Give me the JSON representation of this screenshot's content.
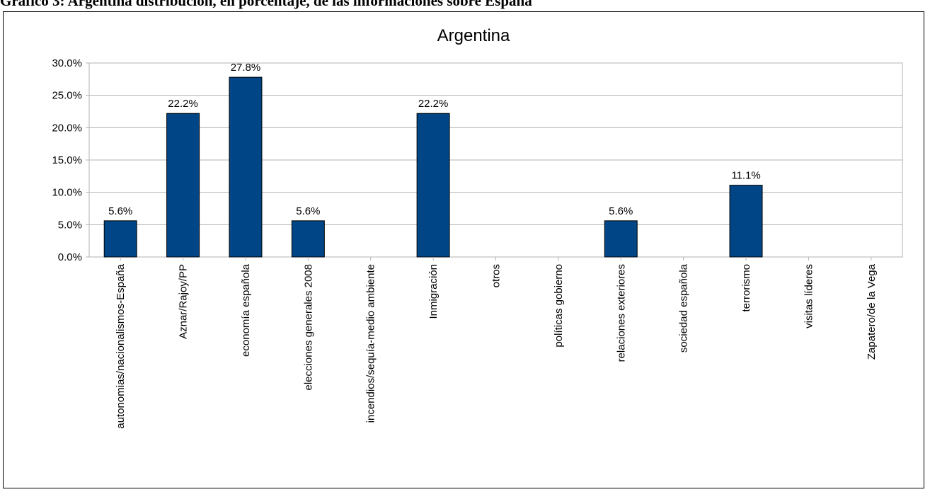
{
  "heading": "Gráfico 3: Argentina distribución, en porcentaje, de las informaciones sobre España",
  "colors": {
    "bar": "#004586",
    "grid": "#b3b3b3"
  },
  "chart_data": {
    "type": "bar",
    "title": "Argentina",
    "xlabel": "",
    "ylabel": "",
    "ylim": [
      0,
      30
    ],
    "yticks": [
      "0.0%",
      "5.0%",
      "10.0%",
      "15.0%",
      "20.0%",
      "25.0%",
      "30.0%"
    ],
    "ytick_values": [
      0,
      5,
      10,
      15,
      20,
      25,
      30
    ],
    "grid": true,
    "legend": "none",
    "categories": [
      "autonomias/nacionalismos-España",
      "Aznar/Rajoy/PP",
      "economía española",
      "elecciones generales 2008",
      "incendios/sequía-medio ambiente",
      "Inmigración",
      "otros",
      "políticas gobierno",
      "relaciones exteriores",
      "sociedad española",
      "terrorismo",
      "visitas líderes",
      "Zapatero/de la Vega"
    ],
    "values": [
      5.6,
      22.2,
      27.8,
      5.6,
      0,
      22.2,
      0,
      0,
      5.6,
      0,
      11.1,
      0,
      0
    ],
    "data_labels": [
      "5.6%",
      "22.2%",
      "27.8%",
      "5.6%",
      "",
      "22.2%",
      "",
      "",
      "5.6%",
      "",
      "11.1%",
      "",
      ""
    ]
  }
}
